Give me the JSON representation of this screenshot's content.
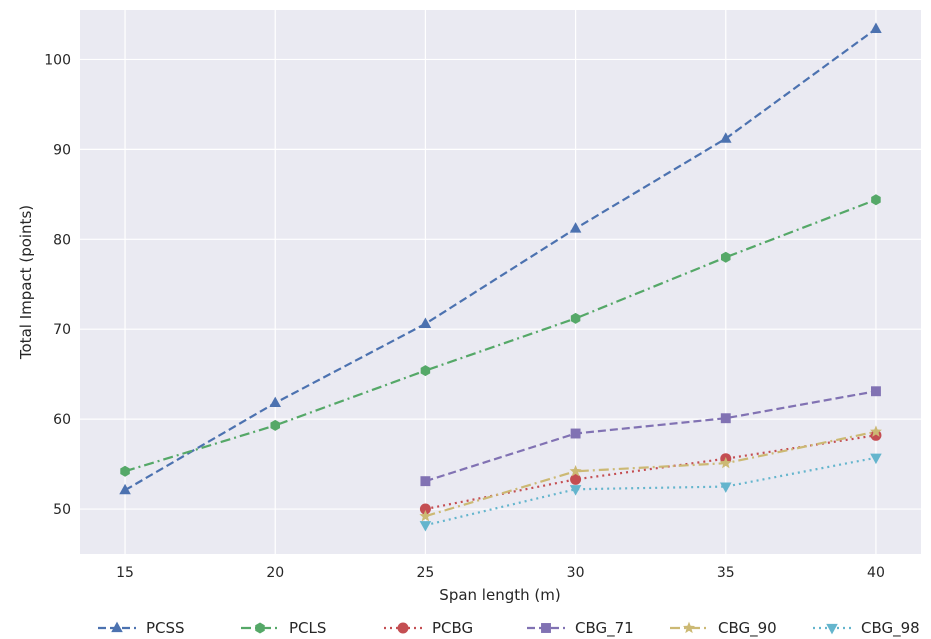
{
  "chart_data": {
    "type": "line",
    "title": "",
    "xlabel": "Span length (m)",
    "ylabel": "Total Impact (points)",
    "xlim": [
      13.5,
      41.5
    ],
    "ylim": [
      45,
      105.5
    ],
    "xticks": [
      15,
      20,
      25,
      30,
      35,
      40
    ],
    "yticks": [
      50,
      60,
      70,
      80,
      90,
      100
    ],
    "grid": true,
    "legend_position": "bottom",
    "series": [
      {
        "name": "PCSS",
        "color": "#4c72b0",
        "marker": "triangle-up",
        "dash": "dashed",
        "x": [
          15,
          20,
          25,
          30,
          35,
          40
        ],
        "y": [
          52.1,
          61.8,
          70.6,
          81.2,
          91.2,
          103.4
        ]
      },
      {
        "name": "PCLS",
        "color": "#55a868",
        "marker": "hexagon",
        "dash": "dashdot",
        "x": [
          15,
          20,
          25,
          30,
          35,
          40
        ],
        "y": [
          54.2,
          59.3,
          65.4,
          71.2,
          78.0,
          84.4
        ]
      },
      {
        "name": "PCBG",
        "color": "#c44e52",
        "marker": "circle",
        "dash": "dotted",
        "x": [
          25,
          30,
          35,
          40
        ],
        "y": [
          50.0,
          53.3,
          55.6,
          58.2
        ]
      },
      {
        "name": "CBG_71",
        "color": "#8172b3",
        "marker": "square",
        "dash": "dashed",
        "x": [
          25,
          30,
          35,
          40
        ],
        "y": [
          53.1,
          58.4,
          60.1,
          63.1
        ]
      },
      {
        "name": "CBG_90",
        "color": "#ccb974",
        "marker": "star",
        "dash": "dashdot",
        "x": [
          25,
          30,
          35,
          40
        ],
        "y": [
          49.2,
          54.2,
          55.1,
          58.6
        ]
      },
      {
        "name": "CBG_98",
        "color": "#64b5cd",
        "marker": "triangle-down",
        "dash": "dotted",
        "x": [
          25,
          30,
          35,
          40
        ],
        "y": [
          48.2,
          52.2,
          52.5,
          55.7
        ]
      }
    ]
  }
}
